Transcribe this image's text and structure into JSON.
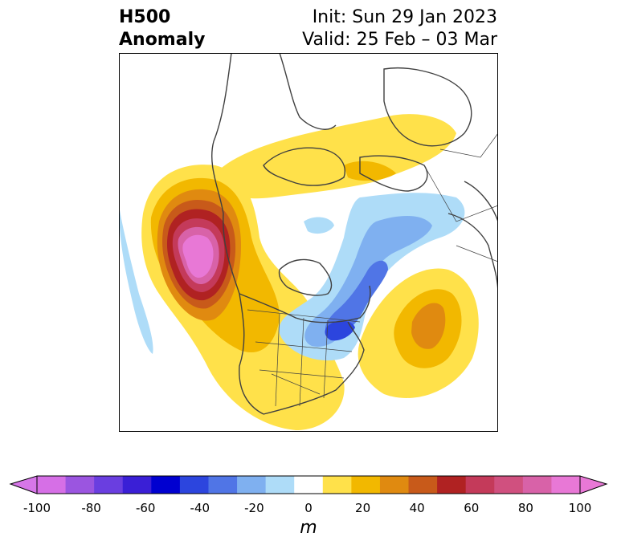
{
  "title": {
    "left_line1": "H500",
    "left_line2": "Anomaly",
    "right_line1": "Init: Sun 29 Jan 2023",
    "right_line2": "Valid: 25 Feb – 03 Mar"
  },
  "colorbar": {
    "unit": "m",
    "ticks": [
      "-100",
      "-80",
      "-60",
      "-40",
      "-20",
      "0",
      "20",
      "40",
      "60",
      "80",
      "100"
    ],
    "colors": [
      "#d66fe6",
      "#9b55e0",
      "#6a3ee0",
      "#3a1fd6",
      "#0000d0",
      "#2c45de",
      "#5075e6",
      "#7fb0f0",
      "#aedcf8",
      "#ffffff",
      "#ffe14a",
      "#f2b800",
      "#e08a10",
      "#c85a1a",
      "#b02222",
      "#c43a5a",
      "#d0507f",
      "#d862a8",
      "#e878d6"
    ],
    "under_color": "#d676e8",
    "over_color": "#e878d6"
  }
}
